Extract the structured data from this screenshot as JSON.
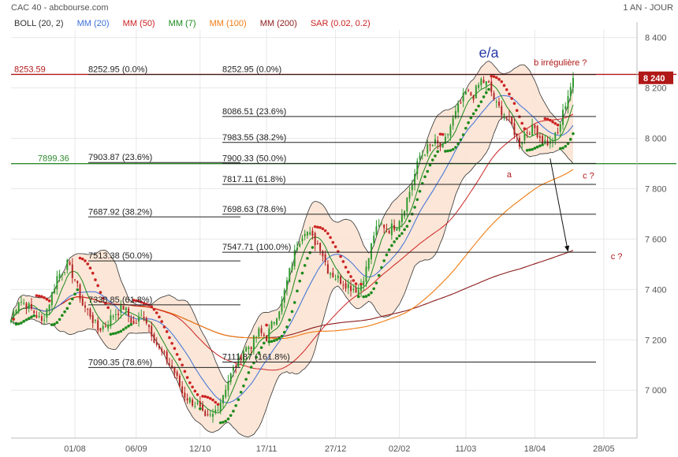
{
  "header": {
    "left": "CAC 40 - abcbourse.com",
    "right": "1 AN - JOUR"
  },
  "legend": [
    {
      "label": "BOLL (20, 2)",
      "color": "#333333"
    },
    {
      "label": "MM (20)",
      "color": "#3a6fd8"
    },
    {
      "label": "MM (50)",
      "color": "#cc2222"
    },
    {
      "label": "MM (7)",
      "color": "#1b8a1b"
    },
    {
      "label": "MM (100)",
      "color": "#f07a10"
    },
    {
      "label": "MM (200)",
      "color": "#8b1a1a"
    },
    {
      "label": "SAR (0.02, 0.2)",
      "color": "#cc2222"
    }
  ],
  "colors": {
    "up": "#2d9a2d",
    "down": "#b22222",
    "band_fill": "#fbe3d3",
    "boll": "#333333",
    "mm20": "#3a6fd8",
    "mm50": "#cc2222",
    "mm7": "#1b8a1b",
    "mm100": "#f07a10",
    "mm200": "#8b1a1a",
    "sar_up": "#1b8a1b",
    "sar_down": "#cc2222",
    "red_line": "#b01818",
    "green_line": "#2d8a2d",
    "grid": "#e8e8e8"
  },
  "chart_data": {
    "type": "candlestick",
    "title": "CAC 40",
    "y_ticks": [
      "8 400",
      "8 200",
      "8 000",
      "7 800",
      "7 600",
      "7 400",
      "7 200",
      "7 000"
    ],
    "y_tick_values": [
      8400,
      8200,
      8000,
      7800,
      7600,
      7400,
      7200,
      7000
    ],
    "ylim": [
      6810,
      8430
    ],
    "x_ticks": [
      "01/08",
      "06/09",
      "12/10",
      "17/11",
      "27/12",
      "02/02",
      "11/03",
      "18/04",
      "28/05"
    ],
    "x_tick_days": [
      25,
      49,
      74,
      100,
      127,
      152,
      178,
      205,
      232
    ],
    "x_day_range": [
      0,
      245
    ],
    "last_day": 220,
    "current_price": "8 240",
    "current_value": 8240,
    "anchor_closes": [
      [
        0,
        7280
      ],
      [
        3,
        7360
      ],
      [
        6,
        7340
      ],
      [
        9,
        7310
      ],
      [
        12,
        7270
      ],
      [
        15,
        7350
      ],
      [
        18,
        7450
      ],
      [
        22,
        7500
      ],
      [
        25,
        7440
      ],
      [
        28,
        7340
      ],
      [
        31,
        7300
      ],
      [
        34,
        7240
      ],
      [
        37,
        7260
      ],
      [
        40,
        7300
      ],
      [
        44,
        7330
      ],
      [
        48,
        7260
      ],
      [
        52,
        7300
      ],
      [
        55,
        7230
      ],
      [
        58,
        7160
      ],
      [
        61,
        7120
      ],
      [
        64,
        7070
      ],
      [
        67,
        6990
      ],
      [
        70,
        6960
      ],
      [
        73,
        6940
      ],
      [
        76,
        6880
      ],
      [
        79,
        6900
      ],
      [
        82,
        6960
      ],
      [
        85,
        7040
      ],
      [
        88,
        7100
      ],
      [
        91,
        7160
      ],
      [
        94,
        7180
      ],
      [
        97,
        7230
      ],
      [
        100,
        7210
      ],
      [
        103,
        7280
      ],
      [
        106,
        7350
      ],
      [
        109,
        7470
      ],
      [
        112,
        7580
      ],
      [
        115,
        7640
      ],
      [
        118,
        7600
      ],
      [
        121,
        7570
      ],
      [
        124,
        7480
      ],
      [
        127,
        7450
      ],
      [
        130,
        7430
      ],
      [
        133,
        7410
      ],
      [
        136,
        7400
      ],
      [
        139,
        7480
      ],
      [
        142,
        7620
      ],
      [
        145,
        7660
      ],
      [
        148,
        7640
      ],
      [
        151,
        7660
      ],
      [
        154,
        7730
      ],
      [
        157,
        7820
      ],
      [
        160,
        7930
      ],
      [
        163,
        7960
      ],
      [
        166,
        7980
      ],
      [
        169,
        7960
      ],
      [
        172,
        8050
      ],
      [
        175,
        8120
      ],
      [
        178,
        8180
      ],
      [
        181,
        8170
      ],
      [
        184,
        8230
      ],
      [
        187,
        8210
      ],
      [
        190,
        8130
      ],
      [
        193,
        8100
      ],
      [
        196,
        8050
      ],
      [
        199,
        7980
      ],
      [
        202,
        8030
      ],
      [
        205,
        8040
      ],
      [
        208,
        7990
      ],
      [
        211,
        7980
      ],
      [
        214,
        8020
      ],
      [
        217,
        8140
      ],
      [
        220,
        8240
      ]
    ],
    "hlines": [
      {
        "value": 8253.59,
        "label": "8253.59",
        "color": "#b01818",
        "full": true
      },
      {
        "value": 7899.36,
        "label": "7899.36",
        "color": "#2d8a2d",
        "full": true
      }
    ],
    "fib_sets": [
      {
        "levels": [
          {
            "value": 8252.95,
            "label": "8252.95",
            "pct": "(0.0%)"
          },
          {
            "value": 7903.87,
            "label": "7903.87",
            "pct": "(23.6%)"
          },
          {
            "value": 7687.92,
            "label": "7687.92",
            "pct": "(38.2%)"
          },
          {
            "value": 7513.38,
            "label": "7513.38",
            "pct": "(50.0%)"
          },
          {
            "value": 7338.85,
            "label": "7338.85",
            "pct": "(61.8%)"
          },
          {
            "value": 7090.35,
            "label": "7090.35",
            "pct": "(78.6%)"
          }
        ]
      },
      {
        "levels": [
          {
            "value": 8252.95,
            "label": "8252.95",
            "pct": "(0.0%)"
          },
          {
            "value": 8086.51,
            "label": "8086.51",
            "pct": "(23.6%)"
          },
          {
            "value": 7983.55,
            "label": "7983.55",
            "pct": "(38.2%)"
          },
          {
            "value": 7900.33,
            "label": "7900.33",
            "pct": "(50.0%)"
          },
          {
            "value": 7817.11,
            "label": "7817.11",
            "pct": "(61.8%)"
          },
          {
            "value": 7698.63,
            "label": "7698.63",
            "pct": "(78.6%)"
          },
          {
            "value": 7547.71,
            "label": "7547.71",
            "pct": "(100.0%)"
          },
          {
            "value": 7111.87,
            "label": "7111.87",
            "pct": "(161.8%)"
          }
        ]
      }
    ],
    "annotations": [
      {
        "text": "e/a",
        "color": "#2a3aa8",
        "day": 187,
        "value": 8320,
        "size": 18
      },
      {
        "text": "b irrégulière ?",
        "color": "#b01818",
        "day": 215,
        "value": 8290,
        "size": 11
      },
      {
        "text": "a",
        "color": "#b01818",
        "day": 195,
        "value": 7845,
        "size": 11
      },
      {
        "text": "c ?",
        "color": "#b01818",
        "day": 226,
        "value": 7840,
        "size": 11
      },
      {
        "text": "c ?",
        "color": "#b01818",
        "day": 237,
        "value": 7520,
        "size": 11
      }
    ],
    "arrow": {
      "from_day": 211,
      "from_value": 7920,
      "to_day": 218,
      "to_value": 7550
    }
  }
}
